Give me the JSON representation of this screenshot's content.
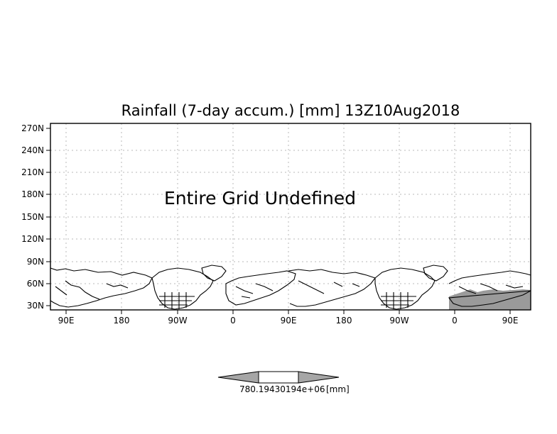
{
  "map": {
    "title": "Rainfall (7-day accum.) [mm] 13Z10Aug2018",
    "message": "Entire Grid Undefined",
    "lat_labels": [
      "270N",
      "240N",
      "210N",
      "180N",
      "150N",
      "120N",
      "90N",
      "60N",
      "30N"
    ],
    "lon_labels": [
      "90E",
      "180",
      "90W",
      "0",
      "90E",
      "180",
      "90W",
      "0",
      "90E"
    ],
    "colors": {
      "land_fill": "#9a9a9a",
      "grid": "#b9b9b9",
      "outline": "#000000"
    }
  },
  "colorbar": {
    "labels": [
      "780.19430194e+06",
      "[mm]"
    ],
    "colors": {
      "left_triangle": "#a6a6a6",
      "center": "#ffffff",
      "right_triangle": "#a6a6a6"
    }
  }
}
